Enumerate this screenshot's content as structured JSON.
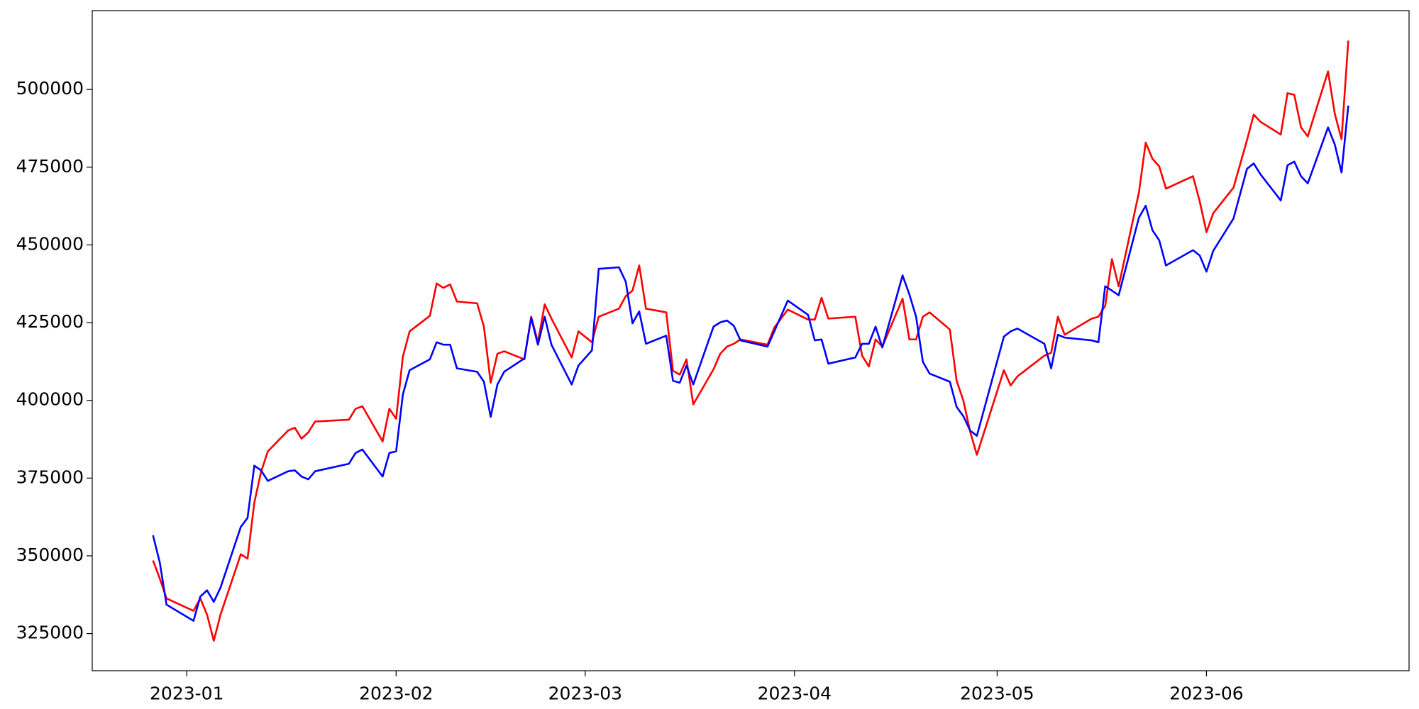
{
  "chart_data": {
    "type": "line",
    "x": [
      "2022-12-27",
      "2022-12-28",
      "2022-12-29",
      "2023-01-02",
      "2023-01-03",
      "2023-01-04",
      "2023-01-05",
      "2023-01-06",
      "2023-01-09",
      "2023-01-10",
      "2023-01-11",
      "2023-01-12",
      "2023-01-13",
      "2023-01-16",
      "2023-01-17",
      "2023-01-18",
      "2023-01-19",
      "2023-01-20",
      "2023-01-25",
      "2023-01-26",
      "2023-01-27",
      "2023-01-30",
      "2023-01-31",
      "2023-02-01",
      "2023-02-02",
      "2023-02-03",
      "2023-02-06",
      "2023-02-07",
      "2023-02-08",
      "2023-02-09",
      "2023-02-10",
      "2023-02-13",
      "2023-02-14",
      "2023-02-15",
      "2023-02-16",
      "2023-02-17",
      "2023-02-20",
      "2023-02-21",
      "2023-02-22",
      "2023-02-23",
      "2023-02-24",
      "2023-02-27",
      "2023-02-28",
      "2023-03-02",
      "2023-03-03",
      "2023-03-06",
      "2023-03-07",
      "2023-03-08",
      "2023-03-09",
      "2023-03-10",
      "2023-03-13",
      "2023-03-14",
      "2023-03-15",
      "2023-03-16",
      "2023-03-17",
      "2023-03-20",
      "2023-03-21",
      "2023-03-22",
      "2023-03-23",
      "2023-03-24",
      "2023-03-28",
      "2023-03-29",
      "2023-03-31",
      "2023-04-03",
      "2023-04-04",
      "2023-04-05",
      "2023-04-06",
      "2023-04-10",
      "2023-04-11",
      "2023-04-12",
      "2023-04-13",
      "2023-04-14",
      "2023-04-17",
      "2023-04-18",
      "2023-04-19",
      "2023-04-20",
      "2023-04-21",
      "2023-04-24",
      "2023-04-25",
      "2023-04-26",
      "2023-04-27",
      "2023-04-28",
      "2023-05-02",
      "2023-05-03",
      "2023-05-04",
      "2023-05-08",
      "2023-05-09",
      "2023-05-10",
      "2023-05-11",
      "2023-05-15",
      "2023-05-16",
      "2023-05-17",
      "2023-05-18",
      "2023-05-19",
      "2023-05-22",
      "2023-05-23",
      "2023-05-24",
      "2023-05-25",
      "2023-05-26",
      "2023-05-30",
      "2023-05-31",
      "2023-06-01",
      "2023-06-02",
      "2023-06-05",
      "2023-06-07",
      "2023-06-08",
      "2023-06-09",
      "2023-06-12",
      "2023-06-13",
      "2023-06-14",
      "2023-06-15",
      "2023-06-16",
      "2023-06-19",
      "2023-06-20",
      "2023-06-21",
      "2023-06-22"
    ],
    "series": [
      {
        "color": "#ff0000",
        "values": [
          348500,
          342700,
          336300,
          332300,
          336300,
          331100,
          322700,
          331100,
          350500,
          349100,
          367100,
          377000,
          383600,
          390300,
          391200,
          387700,
          389700,
          393200,
          393800,
          397300,
          398100,
          386800,
          397300,
          394100,
          414100,
          422200,
          427200,
          437600,
          436200,
          437300,
          431800,
          431200,
          423700,
          405700,
          415000,
          415800,
          413200,
          426900,
          418700,
          430900,
          426300,
          413800,
          422200,
          418700,
          426900,
          429500,
          433500,
          435300,
          443400,
          429500,
          428300,
          409500,
          408300,
          413200,
          398700,
          410000,
          415000,
          417300,
          418200,
          419600,
          417900,
          423400,
          429200,
          426000,
          426000,
          433000,
          426300,
          426900,
          414400,
          410900,
          419600,
          417300,
          432700,
          419600,
          419600,
          426900,
          428300,
          422800,
          406300,
          399900,
          390000,
          382500,
          409700,
          404800,
          407700,
          414400,
          415300,
          426900,
          421100,
          426300,
          426900,
          430400,
          445400,
          436700,
          466900,
          482900,
          477700,
          475300,
          468100,
          472100,
          464000,
          454100,
          460200,
          468400,
          483700,
          491900,
          489600,
          485500,
          498800,
          498300,
          487800,
          484900,
          505800,
          492200,
          484000,
          515700
        ]
      },
      {
        "color": "#0000ff",
        "values": [
          356600,
          347900,
          334300,
          329100,
          336900,
          338900,
          335200,
          339800,
          359300,
          362200,
          379000,
          377500,
          374100,
          377200,
          377500,
          375500,
          374600,
          377200,
          379600,
          383100,
          384200,
          375500,
          383100,
          383600,
          401900,
          409700,
          413200,
          418700,
          417900,
          417900,
          410300,
          409200,
          406000,
          394700,
          405100,
          409200,
          413500,
          426600,
          417900,
          426900,
          417900,
          405100,
          411200,
          416100,
          442300,
          442800,
          438200,
          424800,
          428600,
          418200,
          420800,
          406300,
          405700,
          411200,
          405100,
          423700,
          425100,
          425700,
          424000,
          419300,
          417300,
          422200,
          432100,
          427500,
          419300,
          419600,
          411800,
          413800,
          418200,
          418200,
          423700,
          417000,
          440200,
          434100,
          426900,
          412400,
          408600,
          406000,
          397900,
          394900,
          390300,
          388600,
          420500,
          422200,
          423100,
          418200,
          410300,
          421100,
          420200,
          419300,
          418700,
          436700,
          435300,
          433800,
          458800,
          462600,
          454700,
          451500,
          443400,
          448300,
          446600,
          441400,
          448100,
          458500,
          474500,
          476200,
          472700,
          464300,
          475600,
          476800,
          472100,
          469800,
          487800,
          482300,
          473300,
          494800
        ]
      }
    ],
    "xlim": [
      "2022-12-18",
      "2023-07-01"
    ],
    "xticks": [
      {
        "value": "2023-01-01",
        "label": "2023-01"
      },
      {
        "value": "2023-02-01",
        "label": "2023-02"
      },
      {
        "value": "2023-03-01",
        "label": "2023-03"
      },
      {
        "value": "2023-04-01",
        "label": "2023-04"
      },
      {
        "value": "2023-05-01",
        "label": "2023-05"
      },
      {
        "value": "2023-06-01",
        "label": "2023-06"
      }
    ],
    "ylim": [
      313050,
      525350
    ],
    "yticks": [
      325000,
      350000,
      375000,
      400000,
      425000,
      450000,
      475000,
      500000
    ],
    "grid": false
  }
}
